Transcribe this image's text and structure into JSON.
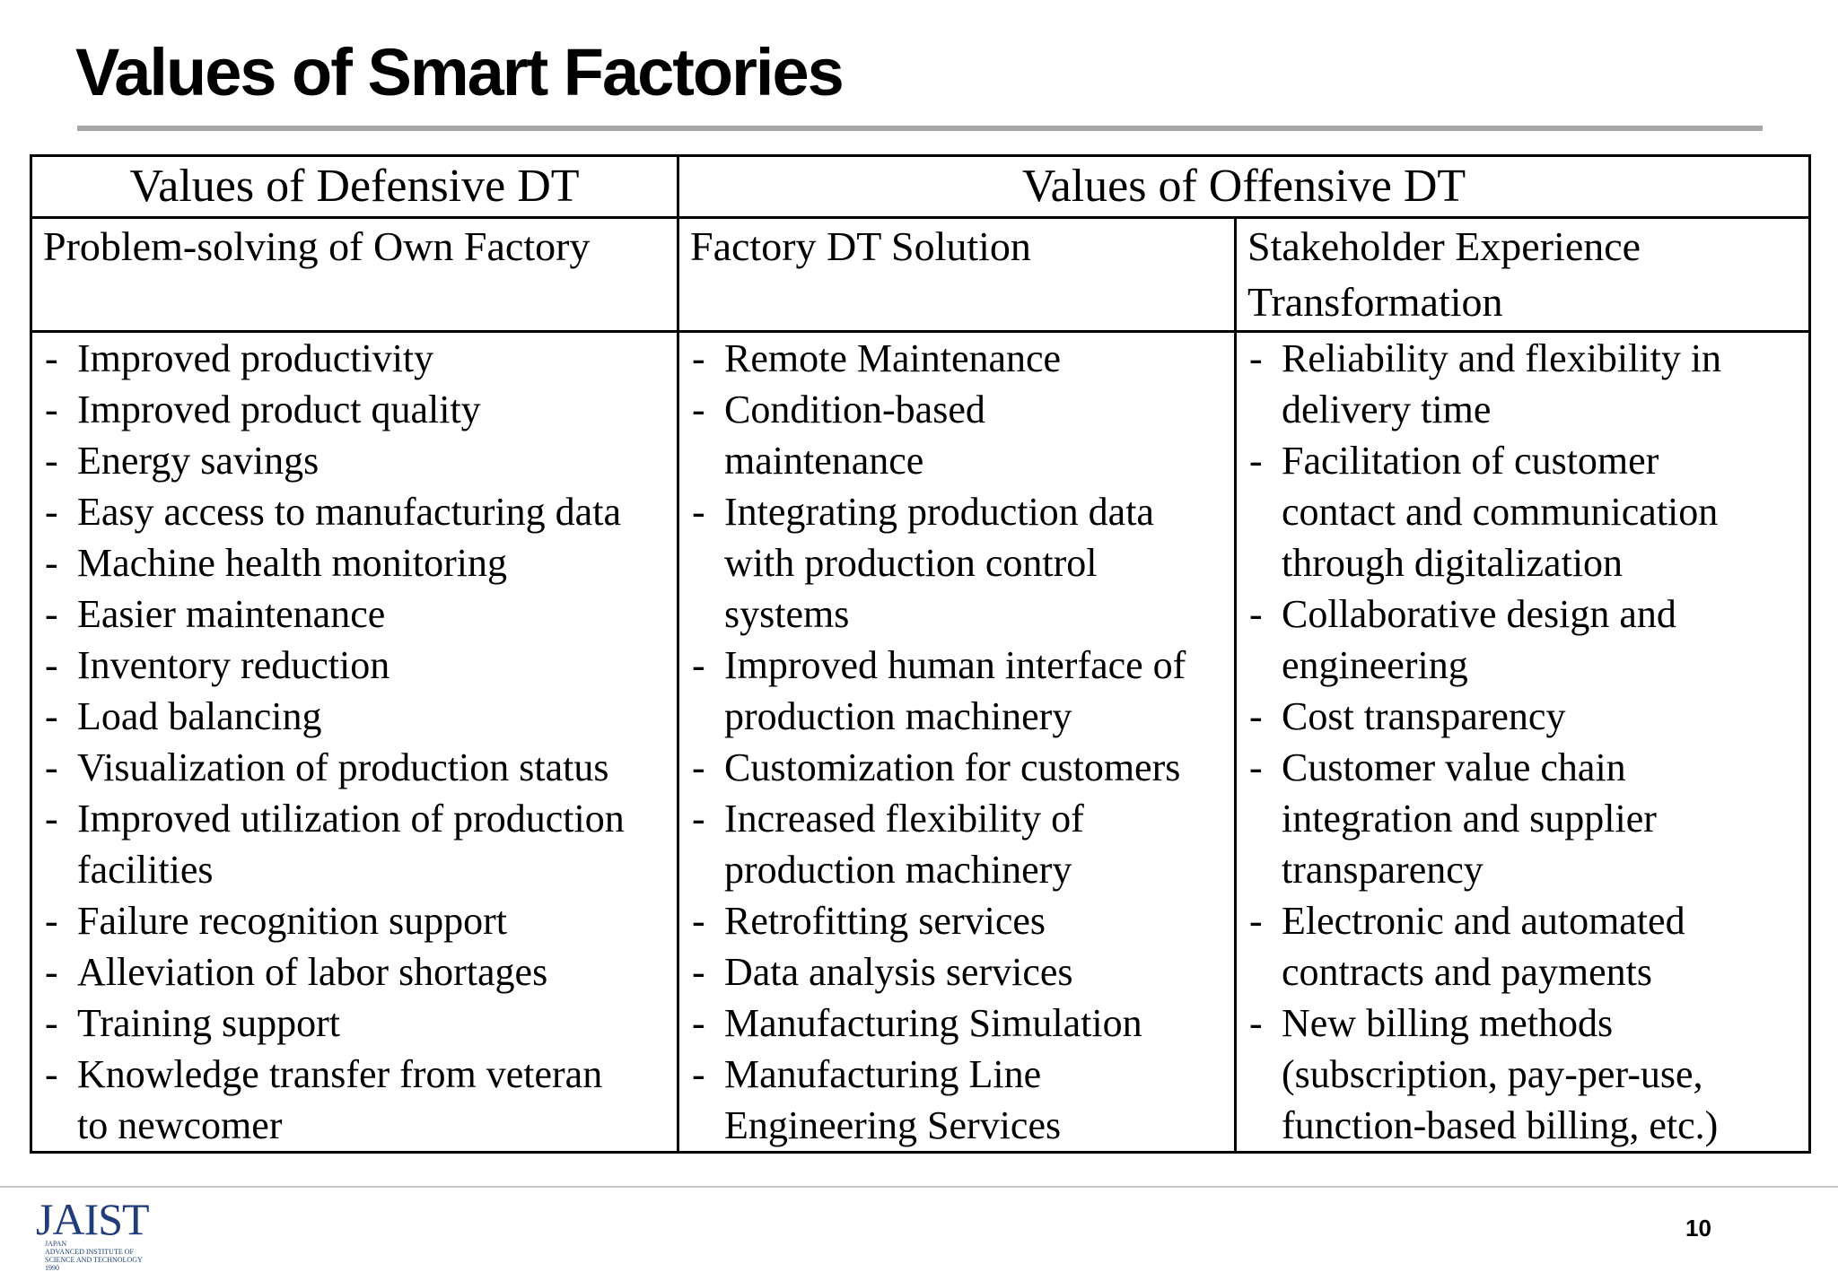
{
  "title": "Values of Smart Factories",
  "table": {
    "group_headers": {
      "defensive": "Values of Defensive DT",
      "offensive": "Values of Offensive DT"
    },
    "sub_headers": {
      "own_factory": "Problem-solving of Own Factory",
      "solution": "Factory DT Solution",
      "stakeholder": "Stakeholder Experience Transformation"
    },
    "dash": "-",
    "columns": {
      "own_factory": [
        [
          "Improved productivity"
        ],
        [
          "Improved product quality"
        ],
        [
          "Energy savings"
        ],
        [
          "Easy access to manufacturing data"
        ],
        [
          "Machine health monitoring"
        ],
        [
          "Easier maintenance"
        ],
        [
          "Inventory reduction"
        ],
        [
          "Load balancing"
        ],
        [
          "Visualization of production status"
        ],
        [
          "Improved utilization of production",
          "facilities"
        ],
        [
          "Failure recognition support"
        ],
        [
          "Alleviation of labor shortages"
        ],
        [
          "Training support"
        ],
        [
          "Knowledge transfer from veteran",
          "to newcomer"
        ]
      ],
      "solution": [
        [
          "Remote Maintenance"
        ],
        [
          "Condition-based",
          "maintenance"
        ],
        [
          "Integrating production data",
          "with production control",
          "systems"
        ],
        [
          "Improved human interface of",
          "production machinery"
        ],
        [
          "Customization for customers"
        ],
        [
          "Increased flexibility of",
          "production machinery"
        ],
        [
          "Retrofitting services"
        ],
        [
          "Data analysis services"
        ],
        [
          "Manufacturing Simulation"
        ],
        [
          "Manufacturing Line",
          "Engineering Services"
        ]
      ],
      "stakeholder": [
        [
          "Reliability and flexibility in",
          "delivery time"
        ],
        [
          "Facilitation of customer",
          "contact and communication",
          "through digitalization"
        ],
        [
          "Collaborative design and",
          "engineering"
        ],
        [
          "Cost transparency"
        ],
        [
          "Customer value chain",
          "integration and supplier",
          "transparency"
        ],
        [
          "Electronic and automated",
          "contracts and payments"
        ],
        [
          "New billing methods",
          "(subscription, pay-per-use,",
          "function-based billing, etc.)"
        ]
      ]
    }
  },
  "footer": {
    "logo_text": "JAIST",
    "logo_subtext": "JAPAN\nADVANCED INSTITUTE OF\nSCIENCE AND TECHNOLOGY\n1990",
    "page_number": "10"
  }
}
